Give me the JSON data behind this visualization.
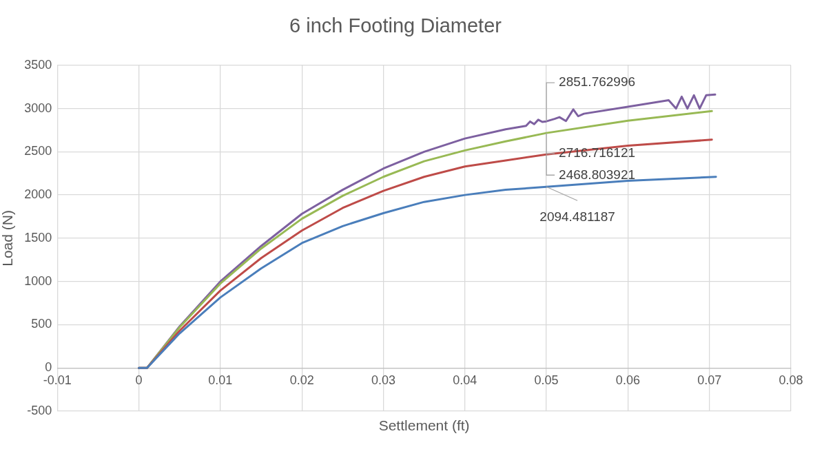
{
  "chart_data": {
    "type": "line",
    "title": "6 inch Footing Diameter",
    "xlabel": "Settlement (ft)",
    "ylabel": "Load (N)",
    "xlim": [
      -0.01,
      0.08
    ],
    "xticks": [
      -0.01,
      0,
      0.01,
      0.02,
      0.03,
      0.04,
      0.05,
      0.06,
      0.07,
      0.08
    ],
    "ylim": [
      -500,
      3500
    ],
    "yticks": [
      -500,
      0,
      500,
      1000,
      1500,
      2000,
      2500,
      3000,
      3500
    ],
    "grid": true,
    "series": [
      {
        "color": "#4a7ebb",
        "x": [
          0,
          0.001,
          0.005,
          0.01,
          0.015,
          0.02,
          0.025,
          0.03,
          0.035,
          0.04,
          0.045,
          0.05,
          0.06,
          0.0708
        ],
        "values": [
          0,
          0,
          400,
          815,
          1150,
          1444,
          1640,
          1790,
          1920,
          2000,
          2060,
          2094.481187,
          2165,
          2210
        ],
        "value_labels": [
          null,
          null,
          null,
          null,
          null,
          null,
          null,
          null,
          null,
          null,
          null,
          "2094.481187",
          null,
          null
        ]
      },
      {
        "color": "#be4b48",
        "x": [
          0,
          0.001,
          0.005,
          0.01,
          0.015,
          0.02,
          0.025,
          0.03,
          0.035,
          0.04,
          0.045,
          0.05,
          0.06,
          0.0703
        ],
        "values": [
          0,
          0,
          430,
          895,
          1270,
          1589,
          1850,
          2048,
          2210,
          2330,
          2400,
          2468.803921,
          2570,
          2640
        ],
        "value_labels": [
          null,
          null,
          null,
          null,
          null,
          null,
          null,
          null,
          null,
          null,
          null,
          "2468.803921",
          null,
          null
        ]
      },
      {
        "color": "#98b954",
        "x": [
          0,
          0.001,
          0.005,
          0.01,
          0.015,
          0.02,
          0.025,
          0.03,
          0.035,
          0.04,
          0.045,
          0.05,
          0.06,
          0.0703
        ],
        "values": [
          0,
          0,
          470,
          976,
          1380,
          1725,
          1990,
          2210,
          2390,
          2516,
          2620,
          2716.716121,
          2860,
          2970
        ],
        "value_labels": [
          null,
          null,
          null,
          null,
          null,
          null,
          null,
          null,
          null,
          null,
          null,
          "2716.716121",
          null,
          null
        ]
      },
      {
        "color": "#7d60a0",
        "x": [
          0,
          0.001,
          0.005,
          0.01,
          0.015,
          0.02,
          0.025,
          0.03,
          0.035,
          0.04,
          0.045,
          0.0475,
          0.048,
          0.0485,
          0.049,
          0.0495,
          0.05,
          0.051,
          0.0516,
          0.0524,
          0.0533,
          0.0539,
          0.0546,
          0.06,
          0.065,
          0.0659,
          0.0666,
          0.0673,
          0.0681,
          0.0688,
          0.0696,
          0.0707
        ],
        "values": [
          0,
          0,
          480,
          1000,
          1410,
          1782,
          2060,
          2306,
          2500,
          2653,
          2760,
          2800,
          2850,
          2820,
          2870,
          2845,
          2851.762996,
          2880,
          2900,
          2855,
          2990,
          2911,
          2940,
          3020,
          3097,
          3000,
          3137,
          3000,
          3153,
          3000,
          3153,
          3161
        ],
        "value_labels": [
          null,
          null,
          null,
          null,
          null,
          null,
          null,
          null,
          null,
          null,
          null,
          null,
          null,
          null,
          null,
          null,
          "2851.762996",
          null,
          null,
          null,
          null,
          null,
          null,
          null,
          null,
          null,
          null,
          null,
          null,
          null,
          null,
          null
        ]
      }
    ]
  }
}
